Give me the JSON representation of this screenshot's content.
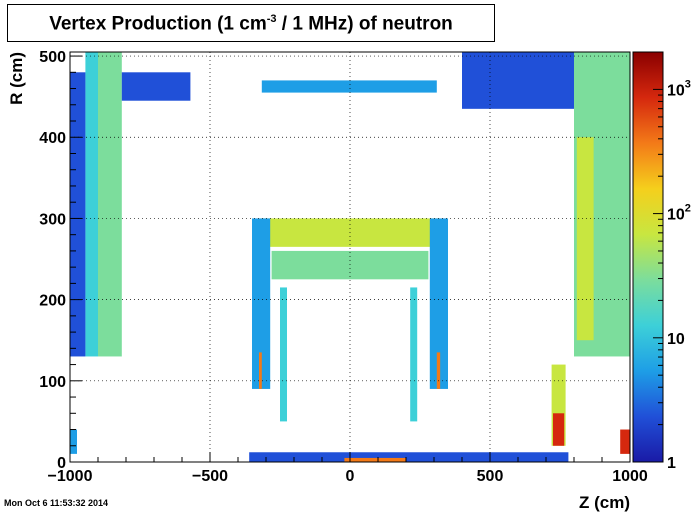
{
  "title": {
    "main": "Vertex Production (1 cm",
    "superscript": "-3",
    "rest": " / 1 MHz) of   neutron"
  },
  "timestamp": "Mon Oct  6 11:53:32 2014",
  "chart_data": {
    "type": "heatmap",
    "xlabel": "Z (cm)",
    "ylabel": "R (cm)",
    "xlim": [
      -1000,
      1000
    ],
    "ylim": [
      0,
      505
    ],
    "x_ticks": [
      -1000,
      -500,
      0,
      500,
      1000
    ],
    "x_tick_labels": [
      "−1000",
      "−500",
      "0",
      "500",
      "1000"
    ],
    "y_ticks": [
      0,
      100,
      200,
      300,
      400,
      500
    ],
    "y_tick_labels": [
      "0",
      "100",
      "200",
      "300",
      "400",
      "500"
    ],
    "grid": true,
    "colorbar": {
      "scale": "log",
      "range": [
        1,
        2000
      ],
      "ticks": [
        1,
        10,
        100,
        1000
      ],
      "tick_labels": [
        {
          "base": "1",
          "exp": ""
        },
        {
          "base": "10",
          "exp": ""
        },
        {
          "base": "10",
          "exp": "2"
        },
        {
          "base": "10",
          "exp": "3"
        }
      ],
      "colors": [
        "#1a1aa6",
        "#2050d8",
        "#1e9ee6",
        "#3dd0d8",
        "#7cdd9c",
        "#c8e640",
        "#f5cf1c",
        "#f37a18",
        "#d5280e",
        "#8a0000"
      ]
    },
    "regions": [
      {
        "name": "left-endcap-tail",
        "z": [
          -945,
          -900
        ],
        "r": [
          130,
          505
        ],
        "value": 12
      },
      {
        "name": "left-endcap-core",
        "z": [
          -900,
          -815
        ],
        "r": [
          130,
          505
        ],
        "value": 35
      },
      {
        "name": "left-endcap-thin",
        "z": [
          -1000,
          -945
        ],
        "r": [
          130,
          480
        ],
        "value": 3
      },
      {
        "name": "top-left-band",
        "z": [
          -815,
          -570
        ],
        "r": [
          445,
          480
        ],
        "value": 2
      },
      {
        "name": "top-short-bar",
        "z": [
          -315,
          310
        ],
        "r": [
          455,
          470
        ],
        "value": 4
      },
      {
        "name": "top-right-band",
        "z": [
          400,
          800
        ],
        "r": [
          435,
          505
        ],
        "value": 2
      },
      {
        "name": "right-endcap",
        "z": [
          800,
          1000
        ],
        "r": [
          130,
          505
        ],
        "value": 25
      },
      {
        "name": "right-endcap-hot",
        "z": [
          810,
          870
        ],
        "r": [
          150,
          400
        ],
        "value": 45
      },
      {
        "name": "barrel-calo-upper",
        "z": [
          -320,
          320
        ],
        "r": [
          265,
          300
        ],
        "value": 60
      },
      {
        "name": "barrel-calo-lower",
        "z": [
          -280,
          280
        ],
        "r": [
          225,
          260
        ],
        "value": 20
      },
      {
        "name": "left-pillar",
        "z": [
          -350,
          -285
        ],
        "r": [
          90,
          300
        ],
        "value": 8
      },
      {
        "name": "left-pillar-hot",
        "z": [
          -325,
          -315
        ],
        "r": [
          90,
          135
        ],
        "value": 300
      },
      {
        "name": "right-pillar",
        "z": [
          285,
          350
        ],
        "r": [
          90,
          300
        ],
        "value": 8
      },
      {
        "name": "right-pillar-hot",
        "z": [
          310,
          322
        ],
        "r": [
          90,
          135
        ],
        "value": 300
      },
      {
        "name": "inner-left-rail",
        "z": [
          -250,
          -225
        ],
        "r": [
          50,
          215
        ],
        "value": 10
      },
      {
        "name": "inner-right-rail",
        "z": [
          215,
          240
        ],
        "r": [
          50,
          215
        ],
        "value": 10
      },
      {
        "name": "bottom-spike",
        "z": [
          720,
          770
        ],
        "r": [
          20,
          120
        ],
        "value": 80
      },
      {
        "name": "bottom-spike-hot",
        "z": [
          725,
          765
        ],
        "r": [
          20,
          60
        ],
        "value": 600
      },
      {
        "name": "right-corner-hot",
        "z": [
          965,
          1000
        ],
        "r": [
          10,
          40
        ],
        "value": 800
      },
      {
        "name": "left-corner",
        "z": [
          -1000,
          -975
        ],
        "r": [
          10,
          40
        ],
        "value": 6
      },
      {
        "name": "floor-strip",
        "z": [
          -360,
          780
        ],
        "r": [
          0,
          12
        ],
        "value": 3
      },
      {
        "name": "floor-hot",
        "z": [
          -20,
          200
        ],
        "r": [
          0,
          5
        ],
        "value": 500
      }
    ]
  }
}
